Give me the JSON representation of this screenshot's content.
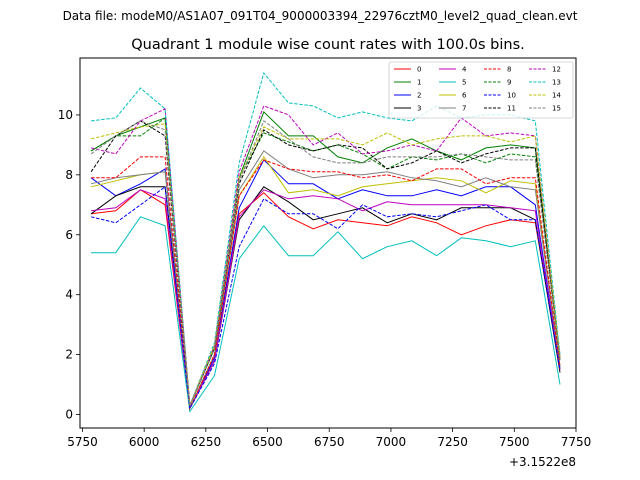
{
  "suptitle": "Data file: modeM0/AS1A07_091T04_9000003394_22976cztM0_level2_quad_clean.evt",
  "chart_data": {
    "type": "line",
    "title": "Quadrant 1 module wise count rates with 100.0s bins.",
    "xlabel": "",
    "ylabel": "",
    "x_offset_label": "+3.1522e8",
    "xlim": [
      5740,
      7750
    ],
    "ylim": [
      -0.45,
      11.9
    ],
    "xticks": [
      5750,
      6000,
      6250,
      6500,
      6750,
      7000,
      7250,
      7500,
      7750
    ],
    "yticks": [
      0,
      2,
      4,
      6,
      8,
      10
    ],
    "legend_position": "top-right",
    "x": [
      5785,
      5885,
      5985,
      6085,
      6185,
      6285,
      6385,
      6485,
      6585,
      6685,
      6785,
      6885,
      6985,
      7085,
      7185,
      7285,
      7385,
      7485,
      7585,
      7685
    ],
    "series": [
      {
        "name": "0",
        "color": "#ff0000",
        "dash": "solid",
        "values": [
          6.7,
          6.8,
          7.5,
          7.0,
          0.2,
          1.8,
          6.7,
          7.4,
          6.6,
          6.2,
          6.5,
          6.4,
          6.3,
          6.6,
          6.4,
          6.0,
          6.3,
          6.5,
          6.4,
          1.6
        ]
      },
      {
        "name": "1",
        "color": "#008000",
        "dash": "solid",
        "values": [
          8.8,
          9.3,
          9.6,
          9.9,
          0.3,
          2.2,
          7.9,
          10.1,
          9.3,
          9.3,
          8.6,
          8.4,
          8.9,
          9.2,
          8.8,
          8.5,
          8.9,
          9.0,
          8.9,
          1.9
        ]
      },
      {
        "name": "2",
        "color": "#0000ff",
        "dash": "solid",
        "values": [
          7.9,
          7.3,
          7.7,
          8.2,
          0.2,
          1.9,
          6.9,
          8.5,
          7.7,
          7.7,
          7.2,
          7.5,
          7.3,
          7.3,
          7.5,
          7.3,
          7.6,
          7.6,
          7.0,
          1.5
        ]
      },
      {
        "name": "3",
        "color": "#000000",
        "dash": "solid",
        "values": [
          6.7,
          7.3,
          7.6,
          7.6,
          0.2,
          1.8,
          6.5,
          7.6,
          7.1,
          6.5,
          6.7,
          6.9,
          6.4,
          6.7,
          6.5,
          6.9,
          6.9,
          6.9,
          6.5,
          1.4
        ]
      },
      {
        "name": "4",
        "color": "#bf00bf",
        "dash": "solid",
        "values": [
          6.8,
          6.9,
          7.5,
          7.2,
          0.2,
          1.8,
          6.6,
          7.5,
          7.2,
          7.3,
          7.2,
          6.8,
          7.1,
          7.0,
          7.0,
          7.0,
          7.0,
          6.9,
          6.8,
          1.5
        ]
      },
      {
        "name": "5",
        "color": "#00bfbf",
        "dash": "solid",
        "values": [
          5.4,
          5.4,
          6.6,
          6.3,
          0.1,
          1.3,
          5.2,
          6.3,
          5.3,
          5.3,
          6.1,
          5.2,
          5.6,
          5.8,
          5.3,
          5.9,
          5.8,
          5.6,
          5.8,
          1.0
        ]
      },
      {
        "name": "6",
        "color": "#bfbf00",
        "dash": "solid",
        "values": [
          7.6,
          7.8,
          8.0,
          8.1,
          0.2,
          2.0,
          7.3,
          8.6,
          7.4,
          7.5,
          7.3,
          7.6,
          7.7,
          7.8,
          7.9,
          7.8,
          7.4,
          7.8,
          7.7,
          1.6
        ]
      },
      {
        "name": "7",
        "color": "#808080",
        "dash": "solid",
        "values": [
          7.7,
          7.9,
          8.0,
          8.1,
          0.2,
          2.0,
          7.5,
          8.8,
          8.2,
          7.9,
          8.0,
          8.0,
          8.1,
          7.9,
          7.8,
          7.6,
          7.9,
          7.6,
          7.5,
          1.6
        ]
      },
      {
        "name": "8",
        "color": "#ff0000",
        "dash": "dashed",
        "values": [
          7.9,
          7.9,
          8.6,
          8.6,
          0.2,
          2.0,
          7.3,
          8.5,
          8.2,
          8.1,
          8.1,
          7.9,
          8.0,
          7.8,
          8.2,
          8.2,
          7.7,
          7.9,
          7.9,
          1.6
        ]
      },
      {
        "name": "9",
        "color": "#008000",
        "dash": "dashed",
        "values": [
          8.8,
          9.3,
          9.3,
          9.9,
          0.3,
          2.2,
          7.9,
          9.4,
          9.1,
          8.8,
          9.0,
          8.7,
          8.2,
          8.6,
          8.5,
          8.7,
          8.4,
          8.7,
          8.6,
          1.8
        ]
      },
      {
        "name": "10",
        "color": "#0000ff",
        "dash": "dashed",
        "values": [
          6.6,
          6.4,
          7.0,
          7.6,
          0.2,
          1.7,
          5.6,
          7.2,
          6.7,
          6.7,
          6.2,
          7.0,
          6.6,
          6.7,
          6.6,
          6.8,
          7.0,
          6.5,
          6.5,
          1.5
        ]
      },
      {
        "name": "11",
        "color": "#000000",
        "dash": "dashed",
        "values": [
          8.1,
          9.3,
          9.8,
          9.3,
          0.3,
          2.2,
          7.7,
          9.5,
          9.0,
          8.8,
          9.0,
          8.9,
          8.2,
          8.4,
          8.8,
          8.4,
          8.7,
          8.9,
          8.9,
          1.8
        ]
      },
      {
        "name": "12",
        "color": "#bf00bf",
        "dash": "dashed",
        "values": [
          8.9,
          8.7,
          9.8,
          10.2,
          0.3,
          2.3,
          8.1,
          10.3,
          10.0,
          9.0,
          9.4,
          8.7,
          8.8,
          9.0,
          8.8,
          9.9,
          9.3,
          9.4,
          9.3,
          1.9
        ]
      },
      {
        "name": "13",
        "color": "#00bfbf",
        "dash": "dashed",
        "values": [
          9.8,
          9.9,
          10.9,
          10.2,
          0.3,
          2.4,
          8.4,
          11.4,
          10.4,
          10.3,
          9.9,
          10.1,
          9.9,
          9.8,
          10.3,
          9.9,
          10.0,
          10.0,
          9.8,
          2.0
        ]
      },
      {
        "name": "14",
        "color": "#bfbf00",
        "dash": "dashed",
        "values": [
          9.2,
          9.4,
          9.6,
          9.7,
          0.3,
          2.3,
          7.9,
          9.6,
          9.2,
          9.2,
          9.2,
          9.0,
          9.4,
          9.0,
          9.2,
          9.3,
          9.3,
          9.1,
          9.3,
          1.9
        ]
      },
      {
        "name": "15",
        "color": "#808080",
        "dash": "dashed",
        "values": [
          8.7,
          9.3,
          9.8,
          9.5,
          0.3,
          2.2,
          7.8,
          9.8,
          9.2,
          8.6,
          8.4,
          8.4,
          8.6,
          8.6,
          8.6,
          8.7,
          8.6,
          8.5,
          8.5,
          1.8
        ]
      }
    ]
  }
}
